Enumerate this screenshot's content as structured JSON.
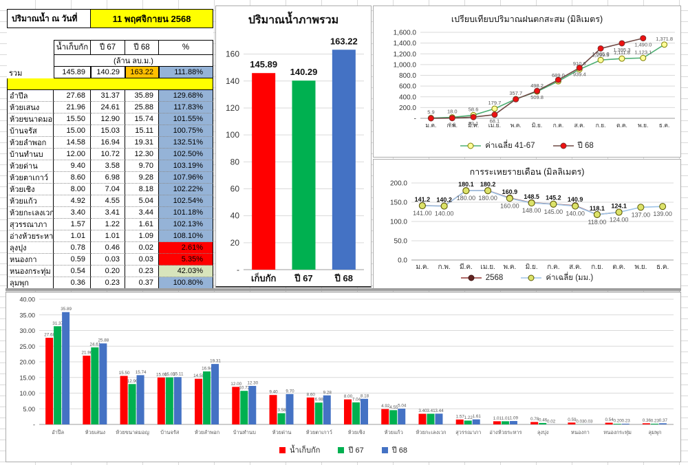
{
  "table": {
    "title_label": "ปริมาณน้ำ ณ วันที่",
    "date_value": "11 พฤศจิกายน 2568",
    "columns": [
      "น้ำเก็บกัก",
      "ปี 67",
      "ปี 68",
      "%"
    ],
    "unit_note": "(ล้าน ลบ.ม.)",
    "total_label": "รวม",
    "total": {
      "stored": "145.89",
      "y67": "140.29",
      "y68": "163.22",
      "pct": "111.88%"
    },
    "highlight": {
      "date_bg": "#FFFF00",
      "band_yellow": "#FFFF00",
      "y68_total_bg": "#FFC000",
      "pct_blue": "#95B3D7",
      "pct_red": "#FF0000",
      "pct_green": "#D8E4BC"
    },
    "rows": [
      {
        "name": "อำปึล",
        "stored": "27.68",
        "y67": "31.37",
        "y68": "35.89",
        "pct": "129.68%",
        "pct_color": "blue"
      },
      {
        "name": "ห้วยเสนง",
        "stored": "21.96",
        "y67": "24.61",
        "y68": "25.88",
        "pct": "117.83%",
        "pct_color": "blue"
      },
      {
        "name": "ห้วยขนาดมอญ",
        "stored": "15.50",
        "y67": "12.90",
        "y68": "15.74",
        "pct": "101.55%",
        "pct_color": "blue"
      },
      {
        "name": "บ้านจรัส",
        "stored": "15.00",
        "y67": "15.03",
        "y68": "15.11",
        "pct": "100.75%",
        "pct_color": "blue"
      },
      {
        "name": "ห้วยลำพอก",
        "stored": "14.58",
        "y67": "16.94",
        "y68": "19.31",
        "pct": "132.51%",
        "pct_color": "blue"
      },
      {
        "name": "บ้านทำนบ",
        "stored": "12.00",
        "y67": "10.72",
        "y68": "12.30",
        "pct": "102.50%",
        "pct_color": "blue"
      },
      {
        "name": "ห้วยด่าน",
        "stored": "9.40",
        "y67": "3.58",
        "y68": "9.70",
        "pct": "103.19%",
        "pct_color": "blue"
      },
      {
        "name": "ห้วยตาเกาว์",
        "stored": "8.60",
        "y67": "6.98",
        "y68": "9.28",
        "pct": "107.96%",
        "pct_color": "blue"
      },
      {
        "name": "ห้วยเชิง",
        "stored": "8.00",
        "y67": "7.04",
        "y68": "8.18",
        "pct": "102.22%",
        "pct_color": "blue"
      },
      {
        "name": "ห้วยแก้ว",
        "stored": "4.92",
        "y67": "4.55",
        "y68": "5.04",
        "pct": "102.54%",
        "pct_color": "blue"
      },
      {
        "name": "ห้วยกะเลงเวก",
        "stored": "3.40",
        "y67": "3.41",
        "y68": "3.44",
        "pct": "101.18%",
        "pct_color": "blue"
      },
      {
        "name": "สุวรรณาภา",
        "stored": "1.57",
        "y67": "1.22",
        "y68": "1.61",
        "pct": "102.13%",
        "pct_color": "blue"
      },
      {
        "name": "อ่างห้วยระหาร",
        "stored": "1.01",
        "y67": "1.01",
        "y68": "1.09",
        "pct": "108.10%",
        "pct_color": "blue"
      },
      {
        "name": "ลุงปุง",
        "stored": "0.78",
        "y67": "0.46",
        "y68": "0.02",
        "pct": "2.61%",
        "pct_color": "red"
      },
      {
        "name": "หนองกา",
        "stored": "0.59",
        "y67": "0.03",
        "y68": "0.03",
        "pct": "5.35%",
        "pct_color": "red"
      },
      {
        "name": "หนองกระทุ่ม",
        "stored": "0.54",
        "y67": "0.20",
        "y68": "0.23",
        "pct": "42.03%",
        "pct_color": "green"
      },
      {
        "name": "ลุมพุก",
        "stored": "0.36",
        "y67": "0.23",
        "y68": "0.37",
        "pct": "100.80%",
        "pct_color": "blue"
      }
    ]
  },
  "chart_data": [
    {
      "type": "bar",
      "title": "ปริมาณน้ำภาพรวม",
      "categories": [
        "เก็บกัก",
        "ปี 67",
        "ปี 68"
      ],
      "values": [
        145.89,
        140.29,
        163.22
      ],
      "data_labels": [
        "145.89",
        "140.29",
        "163.22"
      ],
      "bar_colors": [
        "#FF0000",
        "#00B050",
        "#4472C4"
      ],
      "ylim": [
        0,
        160
      ],
      "ytick_step": 20,
      "ytick_labels": [
        "-",
        "20",
        "40",
        "60",
        "80",
        "100",
        "120",
        "140",
        "160"
      ],
      "grid": true
    },
    {
      "type": "line",
      "title": "เปรียบเทียบปริมาณฝนตกสะสม (มิลิเมตร)",
      "x": [
        "ม.ค.",
        "ก.พ.",
        "มี.ค.",
        "เม.ย.",
        "พ.ค.",
        "มิ.ย.",
        "ก.ค.",
        "ส.ค.",
        "ก.ย.",
        "ต.ค.",
        "พ.ย.",
        "ธ.ค."
      ],
      "ylim": [
        0,
        1600
      ],
      "ytick_step": 200,
      "ytick_labels": [
        "-",
        "200.0",
        "400.0",
        "600.0",
        "800.0",
        "1,000.0",
        "1,200.0",
        "1,400.0",
        "1,600.0"
      ],
      "legend_pos": "bottom",
      "series": [
        {
          "name": "ค่าเฉลี่ย 41-67",
          "color": "#4CAE72",
          "marker_fill": "#FFFF99",
          "marker_stroke": "#7F7F00",
          "label_pos": "above",
          "values": [
            5.9,
            18.0,
            58.6,
            179.7,
            357.7,
            498.2,
            689.0,
            910.6,
            1085.0,
            1111.8,
            1123.1,
            1371.8
          ],
          "labels": [
            "5.9",
            "18.0",
            "58.6",
            "179.7",
            "357.7",
            "498.2",
            "689.0",
            "910.6",
            "1,085.0",
            "1,111.8",
            "1,123.1",
            "1,371.8"
          ]
        },
        {
          "name": "ปี 68",
          "color": "#6E4843",
          "marker_fill": "#EE1111",
          "marker_stroke": "#7B2C2C",
          "label_pos": "below",
          "values": [
            0.0,
            3.6,
            23.1,
            68.1,
            355.0,
            509.8,
            716.0,
            939.4,
            1299.5,
            1395.3,
            1490.0,
            null
          ],
          "labels": [
            "",
            "3.6",
            "23.1",
            "68.1",
            "",
            "509.8",
            "",
            "939.4",
            "1,299.5",
            "1,395.3",
            "1,490.0",
            ""
          ]
        }
      ]
    },
    {
      "type": "line",
      "title": "การระเหยรายเดือน (มิลลิเมตร)",
      "x": [
        "ม.ค.",
        "ก.พ.",
        "มี.ค.",
        "เม.ย.",
        "พ.ค.",
        "มิ.ย.",
        "ก.ค.",
        "ส.ค.",
        "ก.ย.",
        "ต.ค.",
        "พ.ย.",
        "ธ.ค."
      ],
      "ylim": [
        0,
        200
      ],
      "ytick_step": 50,
      "ytick_labels": [
        "0.0",
        "50.0",
        "100.0",
        "150.0",
        "200.0"
      ],
      "legend_pos": "bottom",
      "series": [
        {
          "name": "2568",
          "color": "#943634",
          "marker_fill": "#632523",
          "marker_stroke": "#3F1715",
          "label_pos": "above",
          "label_bold": true,
          "values": [
            141.2,
            140.2,
            180.1,
            180.2,
            160.9,
            148.5,
            145.2,
            140.9,
            118.1,
            124.1,
            null,
            null
          ],
          "labels": [
            "141.2",
            "140.2",
            "180.1",
            "180.2",
            "160.9",
            "148.5",
            "145.2",
            "140.9",
            "118.1",
            "124.1",
            "",
            ""
          ]
        },
        {
          "name": "ค่าเฉลี่ย (มม.)",
          "color": "#9DC3E6",
          "marker_fill": "#DCE26A",
          "marker_stroke": "#5A5A00",
          "label_pos": "below",
          "values": [
            141,
            140,
            180,
            180,
            160,
            148,
            145,
            140,
            118,
            124,
            137,
            139
          ],
          "labels": [
            "141.00",
            "140.00",
            "180.00",
            "180.00",
            "160.00",
            "148.00",
            "145.00",
            "140.00",
            "118.00",
            "124.00",
            "137.00",
            "139.00"
          ]
        }
      ]
    },
    {
      "type": "grouped_bar",
      "title": "",
      "categories": [
        "อำปึล",
        "ห้วยเสนง",
        "ห้วยขนาดมอญ",
        "บ้านจรัส",
        "ห้วยลำพอก",
        "บ้านทำนบ",
        "ห้วยด่าน",
        "ห้วยตาเกาว์",
        "ห้วยเชิง",
        "ห้วยแก้ว",
        "ห้วยกะเลงเวก",
        "สุวรรณาภา",
        "อ่างห้วยระหาร",
        "ลุงปุง",
        "หนองกา",
        "หนองกระทุ่ม",
        "ลุมพุก"
      ],
      "ylim": [
        0,
        40
      ],
      "ytick_step": 5,
      "ytick_labels": [
        "-",
        "5.00",
        "10.00",
        "15.00",
        "20.00",
        "25.00",
        "30.00",
        "35.00",
        "40.00"
      ],
      "legend_pos": "bottom",
      "series": [
        {
          "name": "น้ำเก็บกัก",
          "color": "#FF0000",
          "values": [
            27.68,
            21.96,
            15.5,
            15.0,
            14.58,
            12.0,
            9.4,
            8.6,
            8.0,
            4.92,
            3.4,
            1.57,
            1.01,
            0.78,
            0.59,
            0.54,
            0.36
          ]
        },
        {
          "name": "ปี 67",
          "color": "#00B050",
          "values": [
            31.37,
            24.61,
            12.9,
            15.03,
            16.94,
            10.72,
            3.58,
            6.98,
            7.04,
            4.55,
            3.41,
            1.22,
            1.01,
            0.46,
            0.03,
            0.2,
            0.23
          ]
        },
        {
          "name": "ปี 68",
          "color": "#4472C4",
          "values": [
            35.89,
            25.88,
            15.74,
            15.11,
            19.31,
            12.3,
            9.7,
            9.28,
            8.18,
            5.04,
            3.44,
            1.61,
            1.09,
            0.02,
            0.03,
            0.23,
            0.37
          ]
        }
      ]
    }
  ]
}
